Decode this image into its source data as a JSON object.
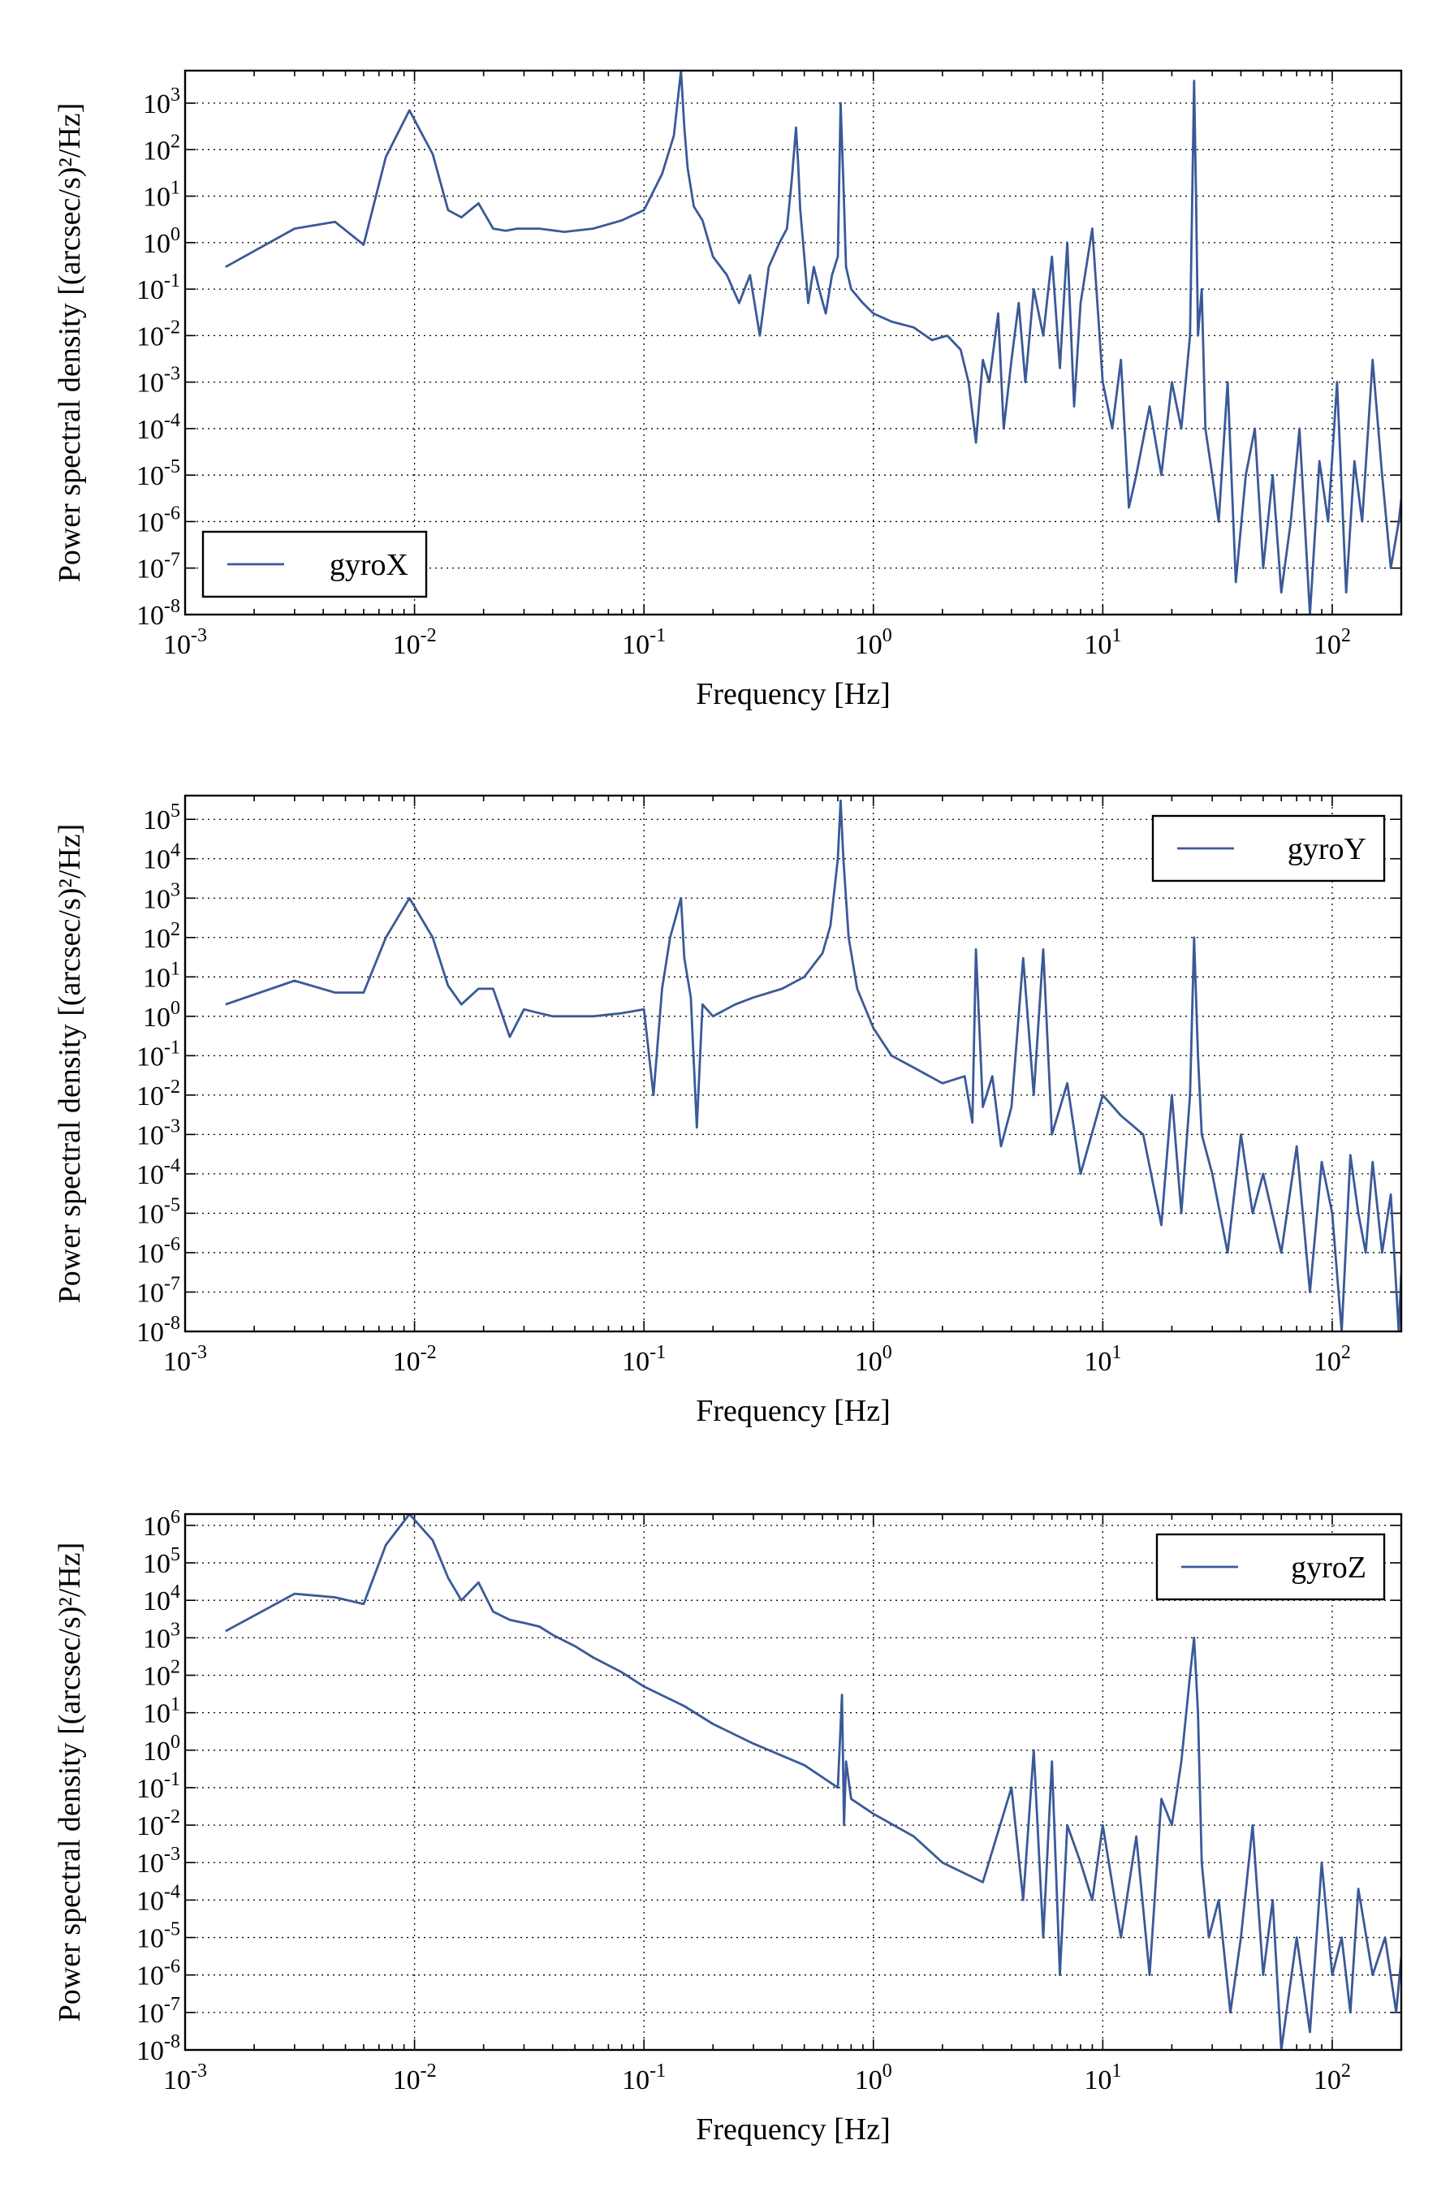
{
  "chart_data": [
    {
      "type": "line",
      "xscale": "log",
      "yscale": "log",
      "xlim": [
        0.001,
        200
      ],
      "ylim": [
        1e-08,
        5000
      ],
      "grid": true,
      "legend_position": "lower-left",
      "xlabel": "Frequency [Hz]",
      "ylabel": "Power spectral density [(arcsec/s)²/Hz]",
      "x_tick_exponents": [
        -3,
        -2,
        -1,
        0,
        1,
        2
      ],
      "y_tick_exponents": [
        -8,
        -7,
        -6,
        -5,
        -4,
        -3,
        -2,
        -1,
        0,
        1,
        2,
        3
      ],
      "color": "#3b5998",
      "series": [
        {
          "name": "gyroX",
          "x": [
            0.0015,
            0.003,
            0.0045,
            0.006,
            0.0075,
            0.0095,
            0.012,
            0.014,
            0.016,
            0.019,
            0.022,
            0.025,
            0.028,
            0.035,
            0.045,
            0.06,
            0.08,
            0.1,
            0.12,
            0.135,
            0.145,
            0.15,
            0.155,
            0.165,
            0.18,
            0.2,
            0.23,
            0.26,
            0.29,
            0.32,
            0.35,
            0.39,
            0.42,
            0.44,
            0.46,
            0.47,
            0.48,
            0.5,
            0.52,
            0.55,
            0.58,
            0.62,
            0.66,
            0.7,
            0.72,
            0.74,
            0.76,
            0.8,
            0.9,
            1.0,
            1.2,
            1.5,
            1.8,
            2.1,
            2.4,
            2.6,
            2.8,
            3.0,
            3.2,
            3.5,
            3.7,
            4.0,
            4.3,
            4.6,
            5.0,
            5.5,
            6.0,
            6.5,
            7.0,
            7.5,
            8.0,
            9.0,
            10.0,
            11.0,
            12.0,
            13.0,
            14.0,
            16.0,
            18.0,
            20.0,
            22.0,
            24.0,
            25.0,
            25.5,
            26.0,
            27.0,
            28.0,
            30.0,
            32.0,
            35.0,
            38.0,
            42.0,
            46.0,
            50.0,
            55.0,
            60.0,
            66.0,
            72.0,
            80.0,
            88.0,
            96.0,
            105.0,
            115.0,
            125.0,
            135.0,
            150.0,
            165.0,
            180.0,
            195.0,
            200.0
          ],
          "y": [
            0.3,
            2.0,
            2.8,
            0.9,
            70,
            700,
            80,
            5,
            3.5,
            7,
            2,
            1.8,
            2,
            2,
            1.7,
            2,
            3,
            5,
            30,
            200,
            5000,
            300,
            40,
            6,
            3,
            0.5,
            0.2,
            0.05,
            0.2,
            0.01,
            0.3,
            1,
            2,
            20,
            300,
            50,
            5,
            0.5,
            0.05,
            0.3,
            0.1,
            0.03,
            0.2,
            0.5,
            1000,
            20,
            0.3,
            0.1,
            0.05,
            0.03,
            0.02,
            0.015,
            0.008,
            0.01,
            0.005,
            0.001,
            5e-05,
            0.003,
            0.001,
            0.03,
            0.0001,
            0.003,
            0.05,
            0.001,
            0.1,
            0.01,
            0.5,
            0.002,
            1,
            0.0003,
            0.05,
            2,
            0.001,
            0.0001,
            0.003,
            2e-06,
            1e-05,
            0.0003,
            1e-05,
            0.001,
            0.0001,
            0.01,
            3000,
            10,
            0.01,
            0.1,
            0.0001,
            1e-05,
            1e-06,
            0.001,
            5e-08,
            1e-05,
            0.0001,
            1e-07,
            1e-05,
            3e-08,
            1e-06,
            0.0001,
            1e-08,
            2e-05,
            1e-06,
            0.001,
            3e-08,
            2e-05,
            1e-06,
            0.003,
            1e-05,
            1e-07,
            1e-06,
            3e-06
          ]
        }
      ]
    },
    {
      "type": "line",
      "xscale": "log",
      "yscale": "log",
      "xlim": [
        0.001,
        200
      ],
      "ylim": [
        1e-08,
        400000
      ],
      "grid": true,
      "legend_position": "top-right",
      "xlabel": "Frequency [Hz]",
      "ylabel": "Power spectral density [(arcsec/s)²/Hz]",
      "x_tick_exponents": [
        -3,
        -2,
        -1,
        0,
        1,
        2
      ],
      "y_tick_exponents": [
        -8,
        -7,
        -6,
        -5,
        -4,
        -3,
        -2,
        -1,
        0,
        1,
        2,
        3,
        4,
        5
      ],
      "color": "#3b5998",
      "series": [
        {
          "name": "gyroY",
          "x": [
            0.0015,
            0.003,
            0.0045,
            0.006,
            0.0075,
            0.0095,
            0.012,
            0.014,
            0.016,
            0.019,
            0.022,
            0.026,
            0.03,
            0.04,
            0.05,
            0.06,
            0.08,
            0.1,
            0.11,
            0.12,
            0.13,
            0.145,
            0.15,
            0.16,
            0.17,
            0.18,
            0.2,
            0.25,
            0.3,
            0.4,
            0.5,
            0.6,
            0.65,
            0.7,
            0.72,
            0.74,
            0.78,
            0.85,
            1.0,
            1.2,
            1.5,
            2.0,
            2.5,
            2.7,
            2.8,
            3.0,
            3.3,
            3.6,
            4.0,
            4.5,
            5.0,
            5.5,
            6.0,
            7.0,
            8.0,
            10.0,
            12.0,
            15.0,
            18.0,
            20.0,
            22.0,
            24.0,
            25.0,
            26.0,
            27.0,
            30.0,
            35.0,
            40.0,
            45.0,
            50.0,
            60.0,
            70.0,
            80.0,
            90.0,
            100.0,
            110.0,
            120.0,
            130.0,
            140.0,
            150.0,
            165.0,
            180.0,
            195.0,
            200.0
          ],
          "y": [
            2,
            8,
            4,
            4,
            100,
            1000,
            100,
            6,
            2,
            5,
            5,
            0.3,
            1.5,
            1,
            1,
            1,
            1.2,
            1.5,
            0.01,
            5,
            100,
            1000,
            30,
            3,
            0.0015,
            2,
            1,
            2,
            3,
            5,
            10,
            40,
            200,
            10000,
            300000,
            10000,
            100,
            5,
            0.5,
            0.1,
            0.05,
            0.02,
            0.03,
            0.002,
            50,
            0.005,
            0.03,
            0.0005,
            0.005,
            30,
            0.01,
            50,
            0.001,
            0.02,
            0.0001,
            0.01,
            0.003,
            0.001,
            5e-06,
            0.01,
            1e-05,
            0.01,
            100,
            0.1,
            0.001,
            0.0001,
            1e-06,
            0.001,
            1e-05,
            0.0001,
            1e-06,
            0.0005,
            1e-07,
            0.0002,
            1e-05,
            1e-08,
            0.0003,
            1e-05,
            1e-06,
            0.0002,
            1e-06,
            3e-05,
            1e-08,
            3e-07
          ]
        }
      ]
    },
    {
      "type": "line",
      "xscale": "log",
      "yscale": "log",
      "xlim": [
        0.001,
        200
      ],
      "ylim": [
        1e-08,
        2000000
      ],
      "grid": true,
      "legend_position": "top-right",
      "xlabel": "Frequency [Hz]",
      "ylabel": "Power spectral density [(arcsec/s)²/Hz]",
      "x_tick_exponents": [
        -3,
        -2,
        -1,
        0,
        1,
        2
      ],
      "y_tick_exponents": [
        -8,
        -7,
        -6,
        -5,
        -4,
        -3,
        -2,
        -1,
        0,
        1,
        2,
        3,
        4,
        5,
        6
      ],
      "color": "#3b5998",
      "series": [
        {
          "name": "gyroZ",
          "x": [
            0.0015,
            0.003,
            0.0045,
            0.006,
            0.0075,
            0.0095,
            0.012,
            0.014,
            0.016,
            0.019,
            0.022,
            0.026,
            0.03,
            0.035,
            0.04,
            0.05,
            0.06,
            0.08,
            0.1,
            0.15,
            0.2,
            0.3,
            0.5,
            0.7,
            0.73,
            0.745,
            0.76,
            0.8,
            1.0,
            1.5,
            2.0,
            3.0,
            4.0,
            4.5,
            5.0,
            5.5,
            6.0,
            6.5,
            7.0,
            8.0,
            9.0,
            10.0,
            12.0,
            14.0,
            16.0,
            18.0,
            20.0,
            22.0,
            24.0,
            25.0,
            26.0,
            27.0,
            29.0,
            32.0,
            36.0,
            40.0,
            45.0,
            50.0,
            55.0,
            60.0,
            70.0,
            80.0,
            90.0,
            100.0,
            110.0,
            120.0,
            130.0,
            150.0,
            170.0,
            190.0,
            200.0
          ],
          "y": [
            1500,
            15000,
            12000,
            8000,
            300000,
            2000000,
            400000,
            40000,
            10000,
            30000,
            5000,
            3000,
            2500,
            2000,
            1200,
            600,
            300,
            120,
            50,
            15,
            5,
            1.5,
            0.4,
            0.1,
            30,
            0.01,
            0.5,
            0.05,
            0.02,
            0.005,
            0.001,
            0.0003,
            0.1,
            0.0001,
            1,
            1e-05,
            0.5,
            1e-06,
            0.01,
            0.001,
            0.0001,
            0.01,
            1e-05,
            0.005,
            1e-06,
            0.05,
            0.01,
            0.5,
            100,
            1000,
            10,
            0.001,
            1e-05,
            0.0001,
            1e-07,
            1e-05,
            0.01,
            1e-06,
            0.0001,
            1e-08,
            1e-05,
            3e-08,
            0.001,
            1e-06,
            1e-05,
            1e-07,
            0.0002,
            1e-06,
            1e-05,
            1e-07,
            3e-06
          ]
        }
      ]
    }
  ]
}
